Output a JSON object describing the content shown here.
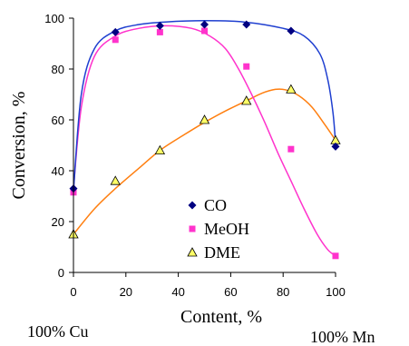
{
  "chart_data": {
    "type": "scatter",
    "xlabel": "Content, %",
    "ylabel": "Conversion, %",
    "xlim": [
      0,
      100
    ],
    "ylim": [
      0,
      100
    ],
    "xticks": [
      0,
      20,
      40,
      60,
      80,
      100
    ],
    "yticks": [
      0,
      20,
      40,
      60,
      80,
      100
    ],
    "grid": false,
    "legend_position": "lower-center",
    "annotations": [
      {
        "text": "100% Cu",
        "position": "below-left"
      },
      {
        "text": "100% Mn",
        "position": "below-right"
      }
    ],
    "series": [
      {
        "name": "CO",
        "marker": "diamond-icon",
        "marker_color": "#000080",
        "line_color": "#1f3fd0",
        "x": [
          0,
          16,
          33,
          50,
          66,
          83,
          100
        ],
        "y": [
          33,
          94.5,
          97,
          97.5,
          97.5,
          95,
          49.5
        ],
        "fit": [
          [
            0,
            32
          ],
          [
            3,
            70
          ],
          [
            8,
            88
          ],
          [
            16,
            95
          ],
          [
            25,
            97.5
          ],
          [
            35,
            98.5
          ],
          [
            50,
            99
          ],
          [
            65,
            98.5
          ],
          [
            80,
            96
          ],
          [
            88,
            93
          ],
          [
            94,
            86
          ],
          [
            97,
            76
          ],
          [
            99,
            63
          ],
          [
            100,
            51
          ]
        ]
      },
      {
        "name": "MeOH",
        "marker": "square-icon",
        "marker_color": "#ff33cc",
        "line_color": "#ff33cc",
        "x": [
          0,
          16,
          33,
          50,
          66,
          83,
          100
        ],
        "y": [
          31.5,
          91.5,
          94.5,
          95,
          81,
          48.5,
          6.5
        ],
        "fit": [
          [
            0,
            33
          ],
          [
            3,
            65
          ],
          [
            8,
            85
          ],
          [
            16,
            93
          ],
          [
            25,
            96
          ],
          [
            35,
            97
          ],
          [
            45,
            96
          ],
          [
            52,
            93
          ],
          [
            58,
            88
          ],
          [
            63,
            80
          ],
          [
            68,
            70
          ],
          [
            73,
            59
          ],
          [
            78,
            47
          ],
          [
            83,
            36
          ],
          [
            88,
            25
          ],
          [
            93,
            15
          ],
          [
            97,
            9
          ],
          [
            100,
            6.5
          ]
        ]
      },
      {
        "name": "DME",
        "marker": "triangle-icon",
        "marker_color": "#ffff66",
        "line_color": "#ff7f10",
        "x": [
          0,
          16,
          33,
          50,
          66,
          83,
          100
        ],
        "y": [
          15,
          36,
          48,
          60,
          67.5,
          72,
          52
        ],
        "fit": [
          [
            0,
            15
          ],
          [
            8,
            25
          ],
          [
            16,
            33
          ],
          [
            25,
            41
          ],
          [
            33,
            48
          ],
          [
            42,
            54
          ],
          [
            50,
            59
          ],
          [
            58,
            63.5
          ],
          [
            66,
            67.5
          ],
          [
            72,
            70.5
          ],
          [
            77,
            72
          ],
          [
            81,
            71.8
          ],
          [
            86,
            69.5
          ],
          [
            91,
            65
          ],
          [
            96,
            58
          ],
          [
            100,
            52
          ]
        ]
      }
    ]
  }
}
